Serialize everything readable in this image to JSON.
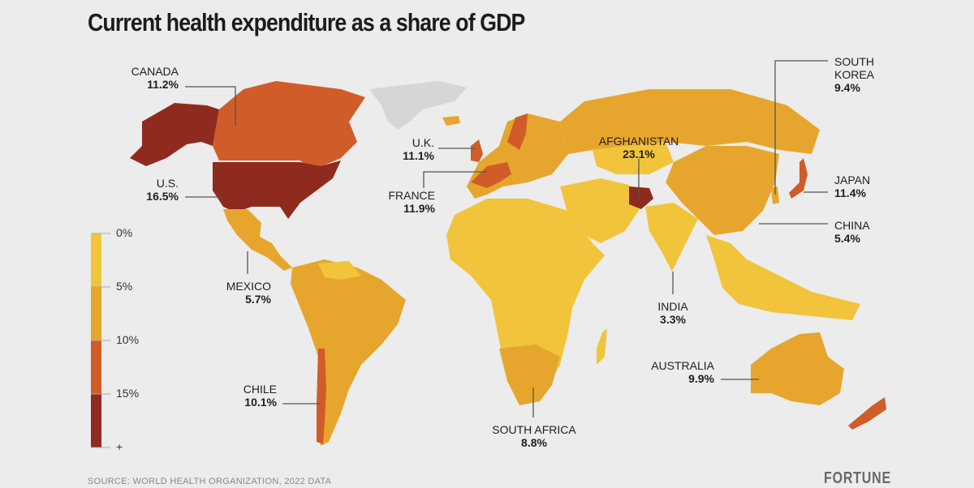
{
  "title": "Current health expenditure as a share of GDP",
  "legend": {
    "ticks": [
      "0%",
      "5%",
      "10%",
      "15%",
      "+"
    ],
    "bins": [
      {
        "range": "0-5%",
        "color": "#f2c43c"
      },
      {
        "range": "5-10%",
        "color": "#e6a62d"
      },
      {
        "range": "10-15%",
        "color": "#d05c29"
      },
      {
        "range": "15%+",
        "color": "#8f2a1e"
      }
    ],
    "no_data_color": "#d6d6d6"
  },
  "callouts": [
    {
      "id": "canada",
      "name": "CANADA",
      "value": "11.2%"
    },
    {
      "id": "us",
      "name": "U.S.",
      "value": "16.5%"
    },
    {
      "id": "mexico",
      "name": "MEXICO",
      "value": "5.7%"
    },
    {
      "id": "chile",
      "name": "CHILE",
      "value": "10.1%"
    },
    {
      "id": "uk",
      "name": "U.K.",
      "value": "11.1%"
    },
    {
      "id": "france",
      "name": "FRANCE",
      "value": "11.9%"
    },
    {
      "id": "afghanistan",
      "name": "AFGHANISTAN",
      "value": "23.1%"
    },
    {
      "id": "south_africa",
      "name": "SOUTH AFRICA",
      "value": "8.8%"
    },
    {
      "id": "india",
      "name": "INDIA",
      "value": "3.3%"
    },
    {
      "id": "australia",
      "name": "AUSTRALIA",
      "value": "9.9%"
    },
    {
      "id": "south_korea",
      "name": "SOUTH KOREA",
      "name_lines": [
        "SOUTH",
        "KOREA"
      ],
      "value": "9.4%"
    },
    {
      "id": "japan",
      "name": "JAPAN",
      "value": "11.4%"
    },
    {
      "id": "china",
      "name": "CHINA",
      "value": "5.4%"
    }
  ],
  "source": "SOURCE:  WORLD HEALTH ORGANIZATION, 2022 DATA",
  "brand": "FORTUNE"
}
